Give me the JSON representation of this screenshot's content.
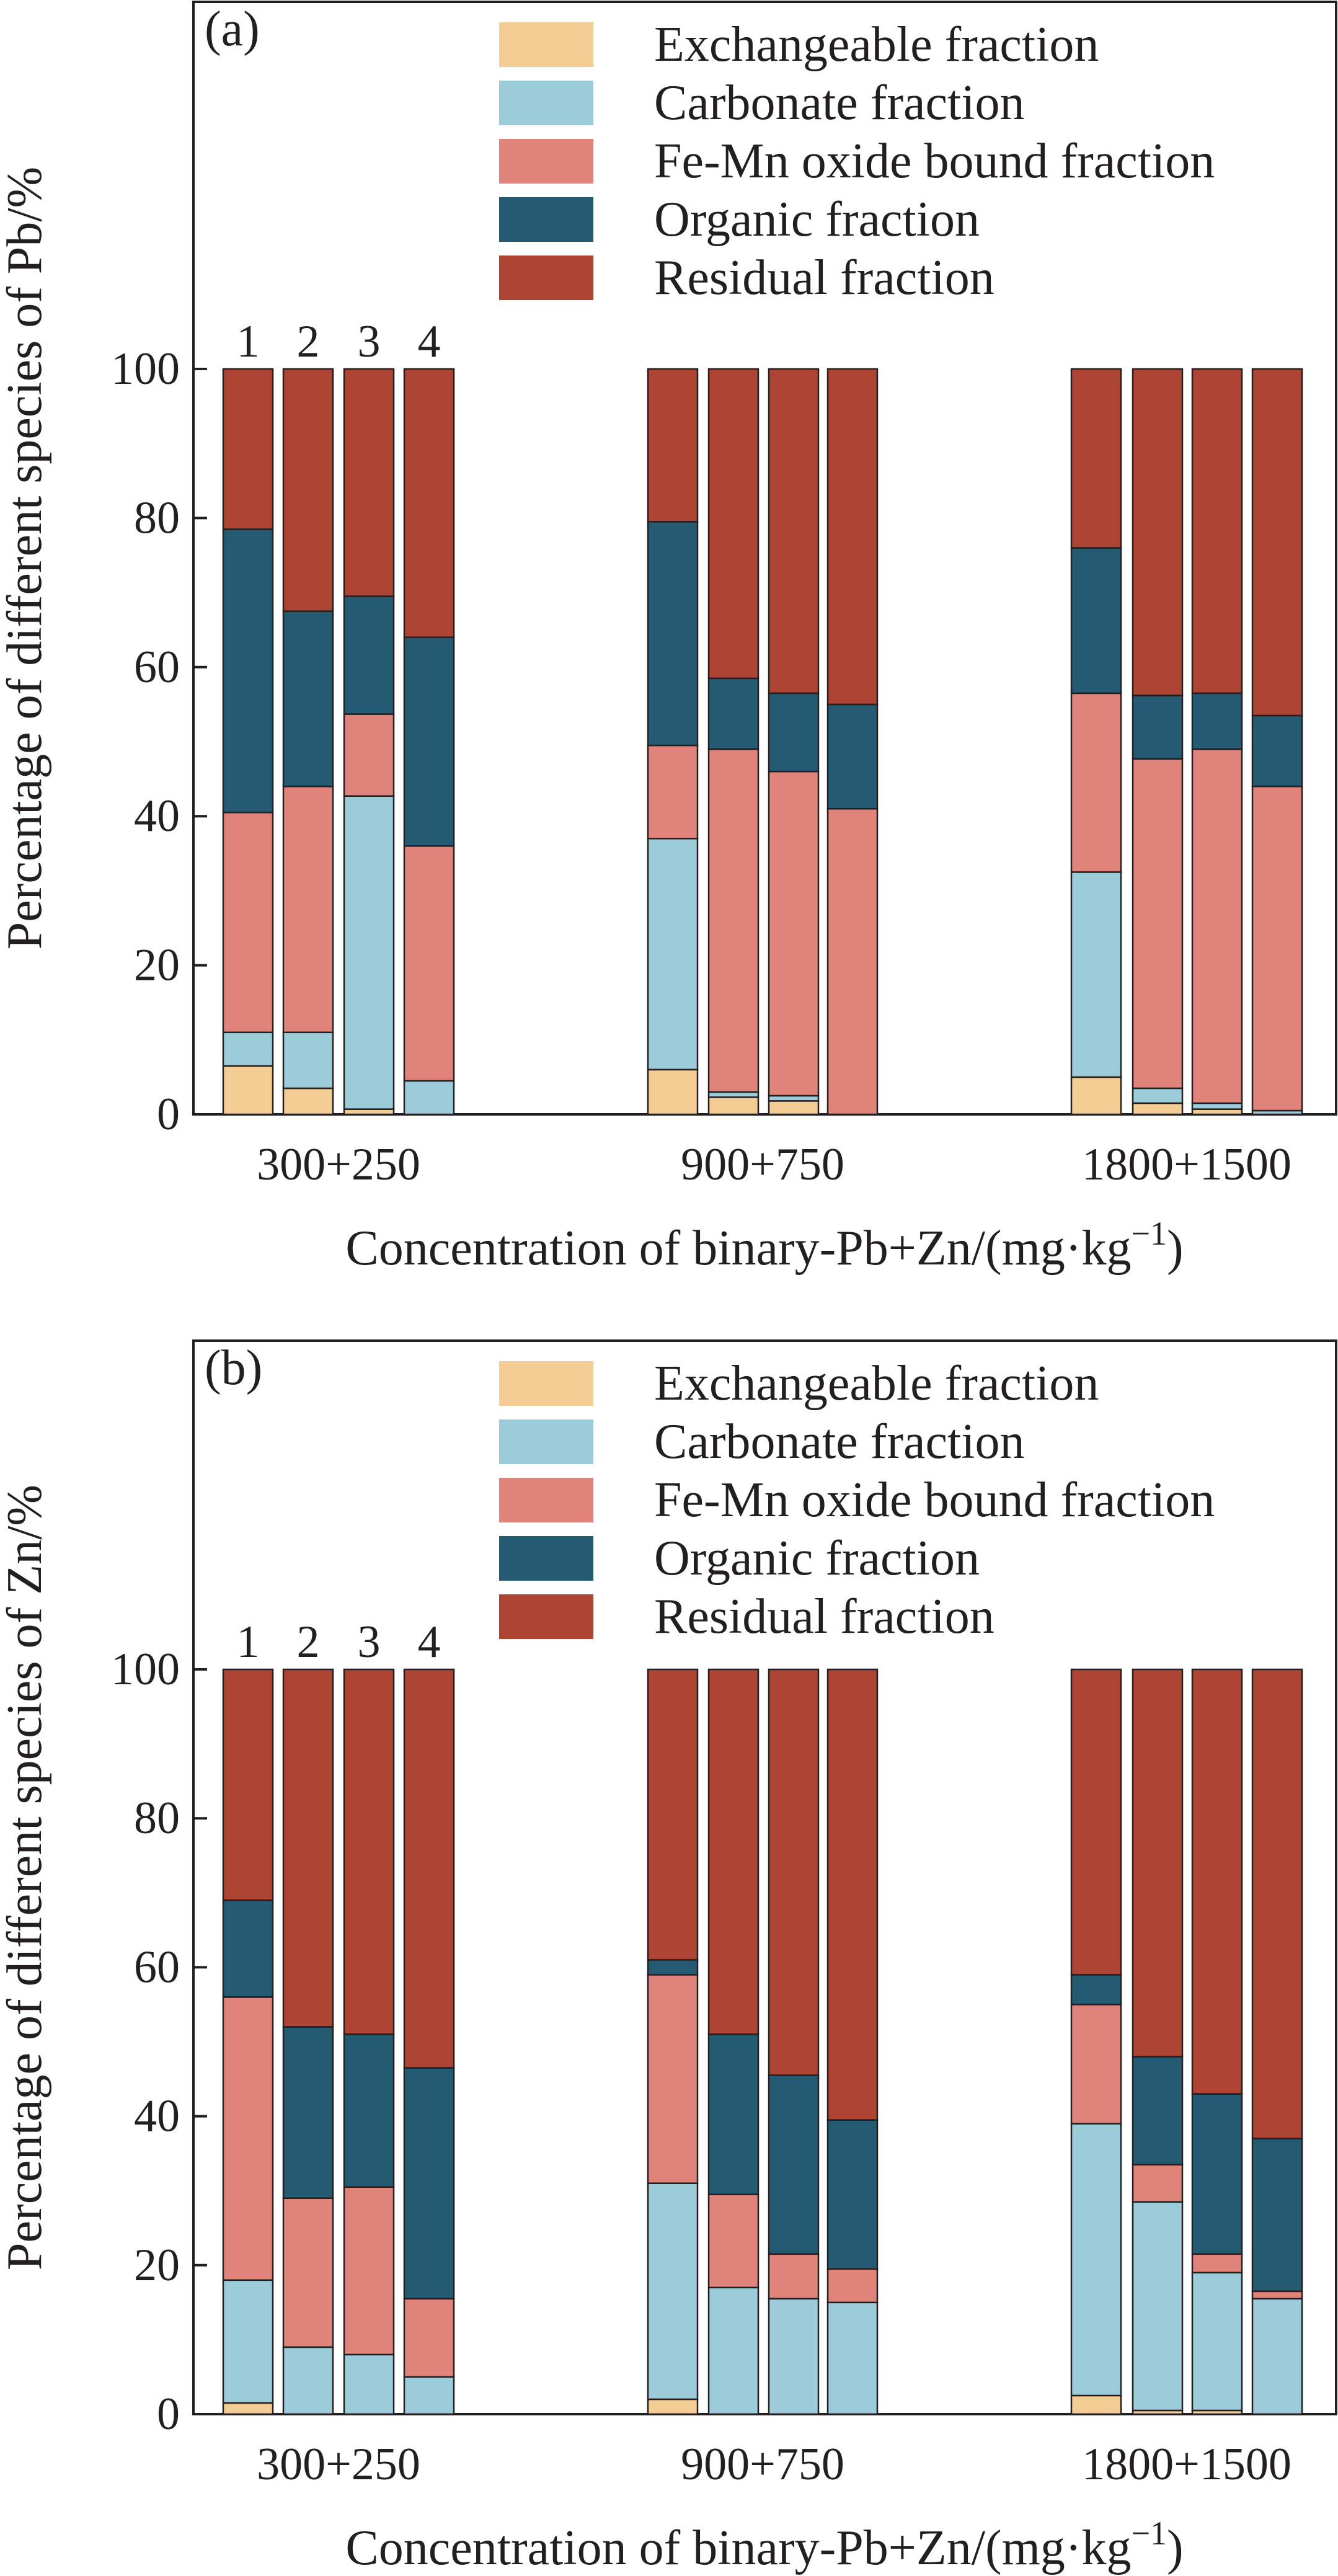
{
  "figure": {
    "colors": {
      "Exchangeable fraction": "#f3cd94",
      "Carbonate fraction": "#9ccbda",
      "Fe-Mn oxide bound fraction": "#e0847b",
      "Organic fraction": "#245a72",
      "Residual fraction": "#ad4434"
    }
  },
  "chart_data": [
    {
      "type": "bar",
      "stacked": true,
      "panel_label": "(a)",
      "ylabel": "Percentage of different species of Pb/%",
      "xlabel": "Concentration of binary-Pb+Zn/(mg·kg⁻¹)",
      "ylim": [
        0,
        100
      ],
      "yticks": [
        0,
        20,
        40,
        60,
        80,
        100
      ],
      "grid": false,
      "legend": "top-right",
      "groups": [
        "300+250",
        "900+750",
        "1800+1500"
      ],
      "bar_labels": [
        "1",
        "2",
        "3",
        "4"
      ],
      "series_order": [
        "Exchangeable fraction",
        "Carbonate fraction",
        "Fe-Mn oxide bound fraction",
        "Organic fraction",
        "Residual fraction"
      ],
      "bars": [
        {
          "group": "300+250",
          "bar": "1",
          "values": [
            6.5,
            4.5,
            29.5,
            38.0,
            21.5
          ]
        },
        {
          "group": "300+250",
          "bar": "2",
          "values": [
            3.5,
            7.5,
            33.0,
            23.5,
            32.5
          ]
        },
        {
          "group": "300+250",
          "bar": "3",
          "values": [
            0.7,
            42.0,
            11.0,
            15.8,
            30.5
          ]
        },
        {
          "group": "300+250",
          "bar": "4",
          "values": [
            0.0,
            4.5,
            31.5,
            28.0,
            36.0
          ]
        },
        {
          "group": "900+750",
          "bar": "1",
          "values": [
            6.0,
            31.0,
            12.5,
            30.0,
            20.5
          ]
        },
        {
          "group": "900+750",
          "bar": "2",
          "values": [
            2.3,
            0.7,
            46.0,
            9.5,
            41.5
          ]
        },
        {
          "group": "900+750",
          "bar": "3",
          "values": [
            1.8,
            0.7,
            43.5,
            10.5,
            43.5
          ]
        },
        {
          "group": "900+750",
          "bar": "4",
          "values": [
            0.0,
            0.0,
            41.0,
            14.0,
            45.0
          ]
        },
        {
          "group": "1800+1500",
          "bar": "1",
          "values": [
            5.0,
            27.5,
            24.0,
            19.5,
            24.0
          ]
        },
        {
          "group": "1800+1500",
          "bar": "2",
          "values": [
            1.5,
            2.0,
            44.2,
            8.5,
            43.8
          ]
        },
        {
          "group": "1800+1500",
          "bar": "3",
          "values": [
            0.7,
            0.8,
            47.5,
            7.5,
            43.5
          ]
        },
        {
          "group": "1800+1500",
          "bar": "4",
          "values": [
            0.0,
            0.5,
            43.5,
            9.5,
            46.5
          ]
        }
      ]
    },
    {
      "type": "bar",
      "stacked": true,
      "panel_label": "(b)",
      "ylabel": "Percentage of different species of Zn/%",
      "xlabel": "Concentration of binary-Pb+Zn/(mg·kg⁻¹)",
      "ylim": [
        0,
        100
      ],
      "yticks": [
        0,
        20,
        40,
        60,
        80,
        100
      ],
      "grid": false,
      "legend": "top-right",
      "groups": [
        "300+250",
        "900+750",
        "1800+1500"
      ],
      "bar_labels": [
        "1",
        "2",
        "3",
        "4"
      ],
      "series_order": [
        "Exchangeable fraction",
        "Carbonate fraction",
        "Fe-Mn oxide bound fraction",
        "Organic fraction",
        "Residual fraction"
      ],
      "bars": [
        {
          "group": "300+250",
          "bar": "1",
          "values": [
            1.5,
            16.5,
            38.0,
            13.0,
            31.0
          ]
        },
        {
          "group": "300+250",
          "bar": "2",
          "values": [
            0.0,
            9.0,
            20.0,
            23.0,
            48.0
          ]
        },
        {
          "group": "300+250",
          "bar": "3",
          "values": [
            0.0,
            8.0,
            22.5,
            20.5,
            49.0
          ]
        },
        {
          "group": "300+250",
          "bar": "4",
          "values": [
            0.0,
            5.0,
            10.5,
            31.0,
            53.5
          ]
        },
        {
          "group": "900+750",
          "bar": "1",
          "values": [
            2.0,
            29.0,
            28.0,
            2.0,
            39.0
          ]
        },
        {
          "group": "900+750",
          "bar": "2",
          "values": [
            0.0,
            17.0,
            12.5,
            21.5,
            49.0
          ]
        },
        {
          "group": "900+750",
          "bar": "3",
          "values": [
            0.0,
            15.5,
            6.0,
            24.0,
            54.5
          ]
        },
        {
          "group": "900+750",
          "bar": "4",
          "values": [
            0.0,
            15.0,
            4.5,
            20.0,
            60.5
          ]
        },
        {
          "group": "1800+1500",
          "bar": "1",
          "values": [
            2.5,
            36.5,
            16.0,
            4.0,
            41.0
          ]
        },
        {
          "group": "1800+1500",
          "bar": "2",
          "values": [
            0.5,
            28.0,
            5.0,
            14.5,
            52.0
          ]
        },
        {
          "group": "1800+1500",
          "bar": "3",
          "values": [
            0.5,
            18.5,
            2.5,
            21.5,
            57.0
          ]
        },
        {
          "group": "1800+1500",
          "bar": "4",
          "values": [
            0.0,
            15.5,
            1.0,
            20.5,
            63.0
          ]
        }
      ]
    }
  ]
}
